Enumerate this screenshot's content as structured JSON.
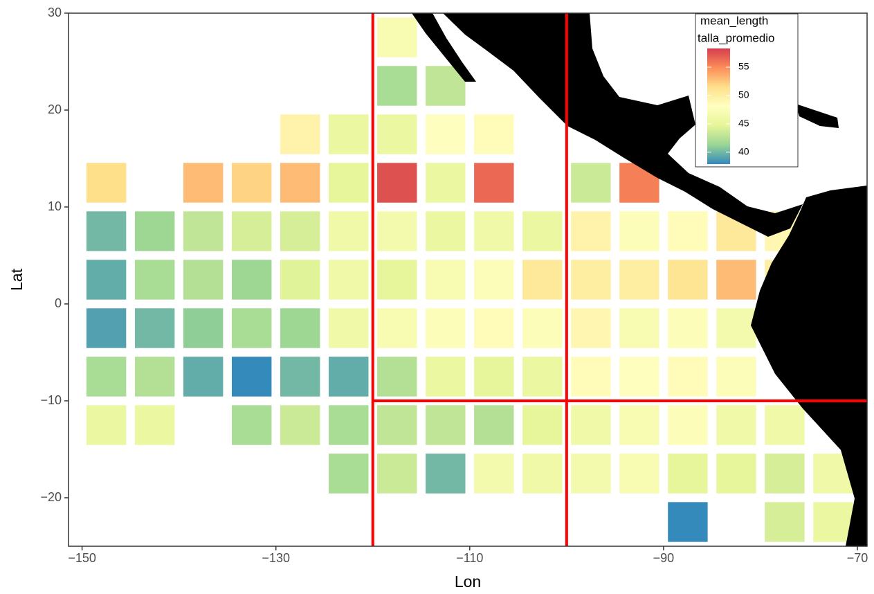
{
  "chart_data": {
    "type": "heatmap",
    "x_label": "Lon",
    "y_label": "Lat",
    "xlim": [
      -151.4,
      -69
    ],
    "ylim": [
      -25,
      30
    ],
    "xticks": [
      {
        "value": -150,
        "label": "−150"
      },
      {
        "value": -130,
        "label": "−130"
      },
      {
        "value": -110,
        "label": "−110"
      },
      {
        "value": -90,
        "label": "−90"
      },
      {
        "value": -70,
        "label": "−70"
      }
    ],
    "yticks": [
      {
        "value": -20,
        "label": "−20"
      },
      {
        "value": -10,
        "label": "−10"
      },
      0,
      10,
      20,
      30
    ],
    "x": [
      -117.5,
      -117.5,
      -112.5,
      -127.5,
      -122.5,
      -117.5,
      -112.5,
      -107.5,
      -147.5,
      -137.5,
      -132.5,
      -127.5,
      -122.5,
      -117.5,
      -112.5,
      -107.5,
      -97.5,
      -92.5,
      -147.5,
      -142.5,
      -137.5,
      -132.5,
      -127.5,
      -122.5,
      -117.5,
      -112.5,
      -107.5,
      -102.5,
      -97.5,
      -92.5,
      -87.5,
      -82.5,
      -77.5,
      -147.5,
      -142.5,
      -137.5,
      -132.5,
      -127.5,
      -122.5,
      -117.5,
      -112.5,
      -107.5,
      -102.5,
      -97.5,
      -92.5,
      -87.5,
      -82.5,
      -77.5,
      -147.5,
      -142.5,
      -137.5,
      -132.5,
      -127.5,
      -122.5,
      -117.5,
      -112.5,
      -107.5,
      -102.5,
      -97.5,
      -92.5,
      -87.5,
      -82.5,
      -147.5,
      -142.5,
      -137.5,
      -132.5,
      -127.5,
      -122.5,
      -117.5,
      -112.5,
      -107.5,
      -102.5,
      -97.5,
      -92.5,
      -87.5,
      -82.5,
      -147.5,
      -142.5,
      -132.5,
      -127.5,
      -122.5,
      -117.5,
      -112.5,
      -107.5,
      -102.5,
      -97.5,
      -92.5,
      -87.5,
      -82.5,
      -77.5,
      -122.5,
      -117.5,
      -112.5,
      -107.5,
      -102.5,
      -97.5,
      -92.5,
      -87.5,
      -82.5,
      -77.5,
      -72.5,
      -87.5,
      -77.5,
      -72.5
    ],
    "y": [
      27.5,
      22.5,
      22.5,
      17.5,
      17.5,
      17.5,
      17.5,
      17.5,
      12.5,
      12.5,
      12.5,
      12.5,
      12.5,
      12.5,
      12.5,
      12.5,
      12.5,
      12.5,
      7.5,
      7.5,
      7.5,
      7.5,
      7.5,
      7.5,
      7.5,
      7.5,
      7.5,
      7.5,
      7.5,
      7.5,
      7.5,
      7.5,
      7.5,
      2.5,
      2.5,
      2.5,
      2.5,
      2.5,
      2.5,
      2.5,
      2.5,
      2.5,
      2.5,
      2.5,
      2.5,
      2.5,
      2.5,
      2.5,
      -2.5,
      -2.5,
      -2.5,
      -2.5,
      -2.5,
      -2.5,
      -2.5,
      -2.5,
      -2.5,
      -2.5,
      -2.5,
      -2.5,
      -2.5,
      -2.5,
      -7.5,
      -7.5,
      -7.5,
      -7.5,
      -7.5,
      -7.5,
      -7.5,
      -7.5,
      -7.5,
      -7.5,
      -7.5,
      -7.5,
      -7.5,
      -7.5,
      -12.5,
      -12.5,
      -12.5,
      -12.5,
      -12.5,
      -12.5,
      -12.5,
      -12.5,
      -12.5,
      -12.5,
      -12.5,
      -12.5,
      -12.5,
      -12.5,
      -17.5,
      -17.5,
      -17.5,
      -17.5,
      -17.5,
      -17.5,
      -17.5,
      -17.5,
      -17.5,
      -17.5,
      -17.5,
      -22.5,
      -22.5,
      -22.5
    ],
    "values": [
      47,
      42,
      43,
      49.5,
      45.5,
      45.5,
      48,
      48.5,
      51.5,
      53,
      52,
      53,
      45,
      57.5,
      45.5,
      56.5,
      43.5,
      55.5,
      40,
      41.5,
      43,
      44,
      44,
      46,
      46.5,
      45.5,
      46,
      45.5,
      49.5,
      47.5,
      48.5,
      50.5,
      49,
      39.5,
      42,
      42.5,
      41.5,
      44.5,
      46,
      45,
      47,
      47.5,
      50.5,
      50,
      50,
      51,
      53,
      50,
      39,
      40,
      41,
      42,
      41.5,
      46,
      47,
      47.5,
      48.5,
      47.5,
      49,
      47,
      47.5,
      46.5,
      42,
      42.5,
      39.5,
      38,
      40,
      39.5,
      42.5,
      45.5,
      45,
      45.5,
      48.5,
      48,
      48.5,
      47.5,
      45.5,
      45.5,
      42,
      43.5,
      42,
      43,
      43,
      42.5,
      45,
      46,
      47,
      47.5,
      46,
      46,
      42,
      43.5,
      40,
      46.5,
      46,
      46.5,
      47,
      45,
      45,
      44,
      46,
      38,
      44,
      45.5
    ],
    "colormap": [
      "#3288BD",
      "#99D594",
      "#E6F598",
      "#FFFFBF",
      "#FEE08B",
      "#FC8D59",
      "#D53E4F"
    ],
    "clim": [
      37.9,
      58.3
    ],
    "cticks": [
      40,
      45,
      50,
      55
    ],
    "legend_title": [
      "mean_length",
      "talla_promedio"
    ],
    "vlines": [
      -120,
      -100
    ],
    "hlines": [
      {
        "y": -10,
        "xmin": -120
      }
    ],
    "line_color": "#ff0000"
  }
}
